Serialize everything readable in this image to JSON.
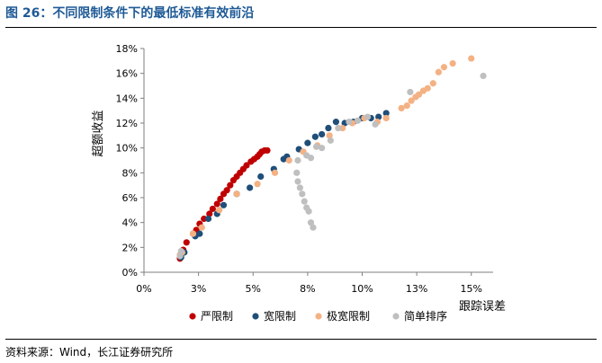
{
  "figure": {
    "title": "图 26：不同限制条件下的最低标准有效前沿",
    "source": "资料来源：Wind，长江证券研究所"
  },
  "chart_data": {
    "type": "scatter",
    "title": "",
    "xlabel": "跟踪误差",
    "ylabel": "超额收益",
    "xlim": [
      0,
      0.16
    ],
    "ylim": [
      0,
      0.18
    ],
    "x_ticks": [
      0,
      0.025,
      0.05,
      0.075,
      0.1,
      0.125,
      0.15
    ],
    "x_tick_labels": [
      "0%",
      "3%",
      "5%",
      "8%",
      "10%",
      "13%",
      "15%"
    ],
    "y_ticks": [
      0,
      0.02,
      0.04,
      0.06,
      0.08,
      0.1,
      0.12,
      0.14,
      0.16,
      0.18
    ],
    "y_tick_labels": [
      "0%",
      "2%",
      "4%",
      "6%",
      "8%",
      "10%",
      "12%",
      "14%",
      "16%",
      "18%"
    ],
    "grid": false,
    "legend_position": "bottom",
    "series": [
      {
        "name": "严限制",
        "color": "#c00000",
        "points": [
          [
            0.0165,
            0.011
          ],
          [
            0.0172,
            0.015
          ],
          [
            0.018,
            0.018
          ],
          [
            0.0195,
            0.024
          ],
          [
            0.0225,
            0.031
          ],
          [
            0.024,
            0.034
          ],
          [
            0.0255,
            0.039
          ],
          [
            0.0275,
            0.043
          ],
          [
            0.03,
            0.047
          ],
          [
            0.0315,
            0.051
          ],
          [
            0.0335,
            0.055
          ],
          [
            0.035,
            0.059
          ],
          [
            0.0365,
            0.063
          ],
          [
            0.038,
            0.066
          ],
          [
            0.0395,
            0.07
          ],
          [
            0.041,
            0.074
          ],
          [
            0.0425,
            0.077
          ],
          [
            0.044,
            0.08
          ],
          [
            0.0455,
            0.083
          ],
          [
            0.047,
            0.086
          ],
          [
            0.049,
            0.089
          ],
          [
            0.0505,
            0.091
          ],
          [
            0.052,
            0.093
          ],
          [
            0.053,
            0.095
          ],
          [
            0.054,
            0.097
          ],
          [
            0.0553,
            0.098
          ],
          [
            0.0565,
            0.098
          ]
        ]
      },
      {
        "name": "宽限制",
        "color": "#1f4e79",
        "points": [
          [
            0.017,
            0.012
          ],
          [
            0.0185,
            0.016
          ],
          [
            0.0235,
            0.029
          ],
          [
            0.0255,
            0.031
          ],
          [
            0.0295,
            0.043
          ],
          [
            0.0335,
            0.047
          ],
          [
            0.0365,
            0.054
          ],
          [
            0.0425,
            0.063
          ],
          [
            0.0485,
            0.068
          ],
          [
            0.0535,
            0.077
          ],
          [
            0.0595,
            0.083
          ],
          [
            0.064,
            0.091
          ],
          [
            0.0655,
            0.093
          ],
          [
            0.071,
            0.099
          ],
          [
            0.075,
            0.104
          ],
          [
            0.0785,
            0.109
          ],
          [
            0.0815,
            0.111
          ],
          [
            0.0845,
            0.116
          ],
          [
            0.088,
            0.121
          ],
          [
            0.092,
            0.12
          ],
          [
            0.096,
            0.121
          ],
          [
            0.1,
            0.124
          ],
          [
            0.104,
            0.124
          ],
          [
            0.1075,
            0.125
          ],
          [
            0.111,
            0.128
          ]
        ]
      },
      {
        "name": "极宽限制",
        "color": "#f4b183",
        "points": [
          [
            0.0165,
            0.014
          ],
          [
            0.0175,
            0.016
          ],
          [
            0.0225,
            0.031
          ],
          [
            0.0265,
            0.036
          ],
          [
            0.0345,
            0.05
          ],
          [
            0.0425,
            0.063
          ],
          [
            0.052,
            0.071
          ],
          [
            0.06,
            0.08
          ],
          [
            0.0665,
            0.09
          ],
          [
            0.073,
            0.097
          ],
          [
            0.0795,
            0.102
          ],
          [
            0.085,
            0.11
          ],
          [
            0.091,
            0.116
          ],
          [
            0.0955,
            0.12
          ],
          [
            0.101,
            0.124
          ],
          [
            0.107,
            0.121
          ],
          [
            0.111,
            0.124
          ],
          [
            0.118,
            0.132
          ],
          [
            0.1205,
            0.134
          ],
          [
            0.1225,
            0.138
          ],
          [
            0.1245,
            0.141
          ],
          [
            0.126,
            0.143
          ],
          [
            0.128,
            0.146
          ],
          [
            0.13,
            0.148
          ],
          [
            0.1325,
            0.152
          ],
          [
            0.135,
            0.161
          ],
          [
            0.1375,
            0.165
          ],
          [
            0.1415,
            0.168
          ],
          [
            0.15,
            0.172
          ]
        ]
      },
      {
        "name": "简单排序",
        "color": "#bfbfbf",
        "points": [
          [
            0.0165,
            0.013
          ],
          [
            0.017,
            0.017
          ],
          [
            0.07,
            0.08
          ],
          [
            0.0705,
            0.073
          ],
          [
            0.0715,
            0.068
          ],
          [
            0.0725,
            0.063
          ],
          [
            0.0735,
            0.057
          ],
          [
            0.0745,
            0.052
          ],
          [
            0.0755,
            0.049
          ],
          [
            0.0765,
            0.04
          ],
          [
            0.0775,
            0.036
          ],
          [
            0.0705,
            0.09
          ],
          [
            0.0745,
            0.094
          ],
          [
            0.0765,
            0.092
          ],
          [
            0.079,
            0.101
          ],
          [
            0.0815,
            0.1
          ],
          [
            0.0855,
            0.106
          ],
          [
            0.089,
            0.116
          ],
          [
            0.094,
            0.121
          ],
          [
            0.098,
            0.122
          ],
          [
            0.1025,
            0.125
          ],
          [
            0.106,
            0.119
          ],
          [
            0.122,
            0.145
          ],
          [
            0.1555,
            0.158
          ]
        ]
      }
    ]
  }
}
